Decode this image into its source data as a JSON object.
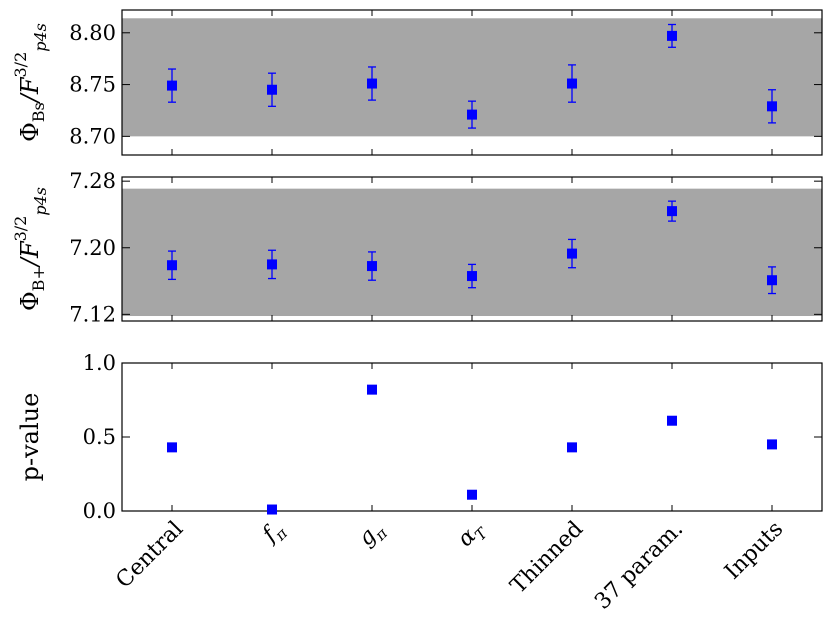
{
  "chart_data": {
    "type": "scatter",
    "categories": [
      "Central",
      "f",
      "g",
      "α",
      "Thinned",
      "37 param.",
      "Inputs"
    ],
    "category_subscripts": [
      "",
      "π",
      "π",
      "T",
      "",
      "",
      ""
    ],
    "marker_color": "#0000ff",
    "band_color": "#a6a6a6",
    "panels": [
      {
        "ylabel_main": "Φ",
        "ylabel_sub": "Bs",
        "ylabel_tail": "/F",
        "ylabel_sup": "3/2",
        "ylabel_sub2": "p4s",
        "ylim": [
          8.682,
          8.822
        ],
        "yticks": [
          8.7,
          8.75,
          8.8
        ],
        "ytick_labels": [
          "8.70",
          "8.75",
          "8.80"
        ],
        "band": [
          8.7,
          8.814
        ],
        "values": [
          8.749,
          8.745,
          8.751,
          8.721,
          8.751,
          8.797,
          8.729
        ],
        "errors": [
          0.016,
          0.016,
          0.016,
          0.013,
          0.018,
          0.011,
          0.016
        ]
      },
      {
        "ylabel_main": "Φ",
        "ylabel_sub": "B+",
        "ylabel_tail": "/F",
        "ylabel_sup": "3/2",
        "ylabel_sub2": "p4s",
        "ylim": [
          7.112,
          7.285
        ],
        "yticks": [
          7.12,
          7.2,
          7.28
        ],
        "ytick_labels": [
          "7.12",
          "7.20",
          "7.28"
        ],
        "band": [
          7.118,
          7.271
        ],
        "values": [
          7.179,
          7.18,
          7.178,
          7.166,
          7.193,
          7.244,
          7.161
        ],
        "errors": [
          0.017,
          0.017,
          0.017,
          0.014,
          0.017,
          0.012,
          0.016
        ]
      },
      {
        "ylabel_text": "p-value",
        "ylim": [
          0.0,
          1.0
        ],
        "yticks": [
          0.0,
          0.5,
          1.0
        ],
        "ytick_labels": [
          "0.0",
          "0.5",
          "1.0"
        ],
        "values": [
          0.43,
          0.01,
          0.82,
          0.11,
          0.43,
          0.61,
          0.45
        ]
      }
    ]
  }
}
